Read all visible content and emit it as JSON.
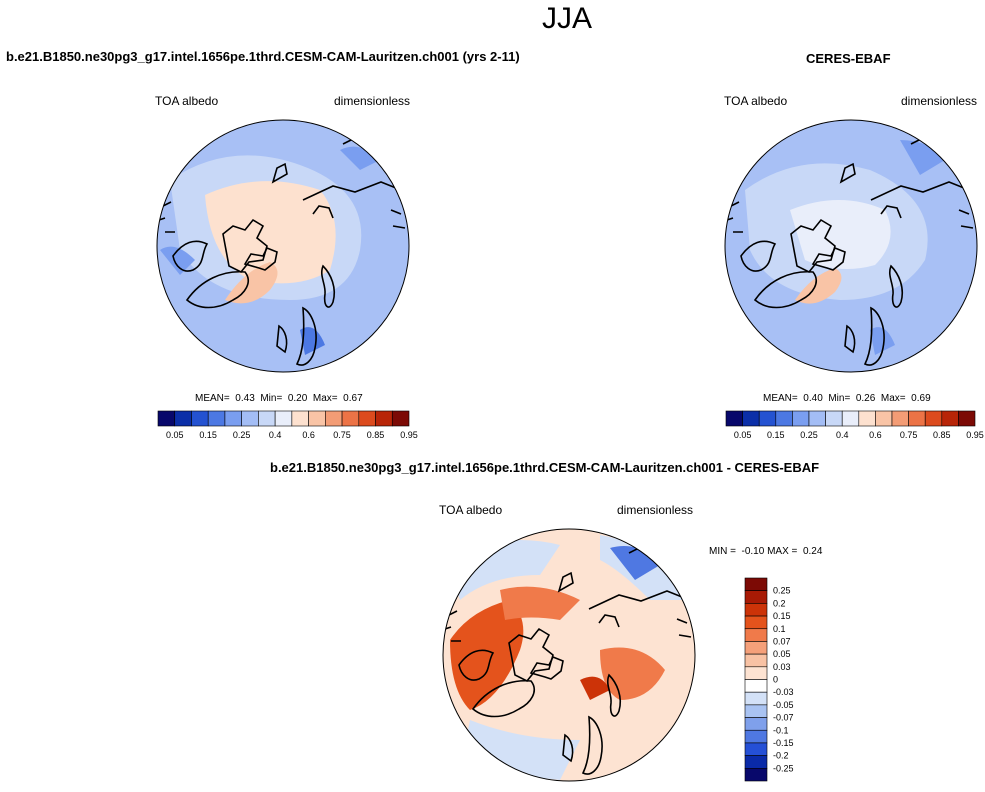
{
  "page_title": "JJA",
  "chart_data": [
    {
      "type": "heatmap",
      "projection": "north-polar-stereographic",
      "title": "b.e21.B1850.ne30pg3_g17.intel.1656pe.1thrd.CESM-CAM-Lauritzen.ch001 (yrs 2-11)",
      "left_label": "TOA albedo",
      "right_label": "dimensionless",
      "stats": {
        "mean_label": "MEAN=",
        "mean": "0.43",
        "min_label": "Min=",
        "min": "0.20",
        "max_label": "Max=",
        "max": "0.67"
      },
      "colorbar_levels": [
        0.05,
        0.1,
        0.15,
        0.2,
        0.25,
        0.3,
        0.4,
        0.5,
        0.6,
        0.7,
        0.75,
        0.8,
        0.85,
        0.9,
        0.95
      ],
      "colorbar_tick_labels": [
        "0.05",
        "0.15",
        "0.25",
        "0.4",
        "0.6",
        "0.75",
        "0.85",
        "0.95"
      ],
      "colorbar_colors": [
        "#08086b",
        "#0b2fa8",
        "#2452d1",
        "#4c78e3",
        "#7a9ef0",
        "#a3bdf5",
        "#c8d8f7",
        "#e9eefa",
        "#fde1cf",
        "#f9c4a6",
        "#f39c75",
        "#ec7346",
        "#dc4b1e",
        "#b82508",
        "#7c0a05"
      ]
    },
    {
      "type": "heatmap",
      "projection": "north-polar-stereographic",
      "title": "CERES-EBAF",
      "left_label": "TOA albedo",
      "right_label": "dimensionless",
      "stats": {
        "mean_label": "MEAN=",
        "mean": "0.40",
        "min_label": "Min=",
        "min": "0.26",
        "max_label": "Max=",
        "max": "0.69"
      },
      "colorbar_levels": [
        0.05,
        0.1,
        0.15,
        0.2,
        0.25,
        0.3,
        0.4,
        0.5,
        0.6,
        0.7,
        0.75,
        0.8,
        0.85,
        0.9,
        0.95
      ],
      "colorbar_tick_labels": [
        "0.05",
        "0.15",
        "0.25",
        "0.4",
        "0.6",
        "0.75",
        "0.85",
        "0.95"
      ],
      "colorbar_colors": [
        "#08086b",
        "#0b2fa8",
        "#2452d1",
        "#4c78e3",
        "#7a9ef0",
        "#a3bdf5",
        "#c8d8f7",
        "#e9eefa",
        "#fde1cf",
        "#f9c4a6",
        "#f39c75",
        "#ec7346",
        "#dc4b1e",
        "#b82508",
        "#7c0a05"
      ]
    },
    {
      "type": "heatmap",
      "projection": "north-polar-stereographic",
      "title": "b.e21.B1850.ne30pg3_g17.intel.1656pe.1thrd.CESM-CAM-Lauritzen.ch001 - CERES-EBAF",
      "left_label": "TOA albedo",
      "right_label": "dimensionless",
      "stats": {
        "min_label": "MIN =",
        "min": "-0.10",
        "max_label": "MAX =",
        "max": "0.24"
      },
      "colorbar_tick_labels": [
        "0.25",
        "0.2",
        "0.15",
        "0.1",
        "0.07",
        "0.05",
        "0.03",
        "0",
        "-0.03",
        "-0.05",
        "-0.07",
        "-0.1",
        "-0.15",
        "-0.2",
        "-0.25"
      ],
      "colorbar_colors": [
        "#7c0a05",
        "#a81a05",
        "#cc3308",
        "#e4531c",
        "#f07a4a",
        "#f5a07a",
        "#f8c2a4",
        "#fde3d2",
        "#ffffff",
        "#d3e1f7",
        "#a9c3f2",
        "#7fa0eb",
        "#4f78e2",
        "#2550d6",
        "#0a2aa8",
        "#08086b"
      ]
    }
  ]
}
